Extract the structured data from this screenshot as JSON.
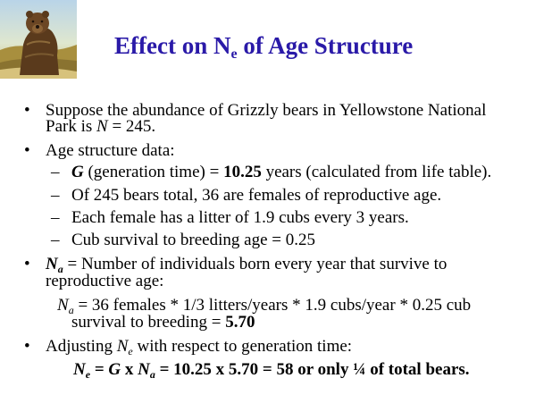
{
  "title": {
    "prefix": "Effect on N",
    "subscript": "e",
    "suffix": " of Age Structure"
  },
  "bullet_char": "•",
  "dash_char": "–",
  "bullet1": {
    "line1": "Suppose the abundance of Grizzly bears in Yellowstone National",
    "line2_prefix": "Park is ",
    "var": "N",
    "line2_suffix": " = 245."
  },
  "bullet2": {
    "label": "Age structure data:",
    "sub1": {
      "var": "G",
      "text1": " (generation time) = ",
      "value": "10.25",
      "text2": " years (calculated from life table)."
    },
    "sub2": "Of  245 bears total, 36 are females of reproductive age.",
    "sub3": "Each female has a litter of 1.9 cubs every 3 years.",
    "sub4": "Cub survival to breeding age = 0.25"
  },
  "bullet3": {
    "var": "N",
    "subscript": "a",
    "line1_rest": " = Number of individuals born every year that survive to",
    "line2": "reproductive age:",
    "calc_var": "N",
    "calc_sub": "a",
    "calc_line1": " = 36 females * 1/3 litters/years * 1.9 cubs/year * 0.25 cub",
    "calc_line2_prefix": "survival to breeding = ",
    "calc_result": "5.70"
  },
  "bullet4": {
    "prefix": "Adjusting ",
    "var": "N",
    "subscript": "e",
    "suffix": " with respect to generation time:",
    "formula": {
      "n": "N",
      "n_sub": "e",
      "eq1": " = ",
      "g": "G",
      "x": " x ",
      "na": "N",
      "na_sub": "a",
      "rest": " = 10.25 x 5.70 = 58 or only ¼ of total bears."
    }
  }
}
